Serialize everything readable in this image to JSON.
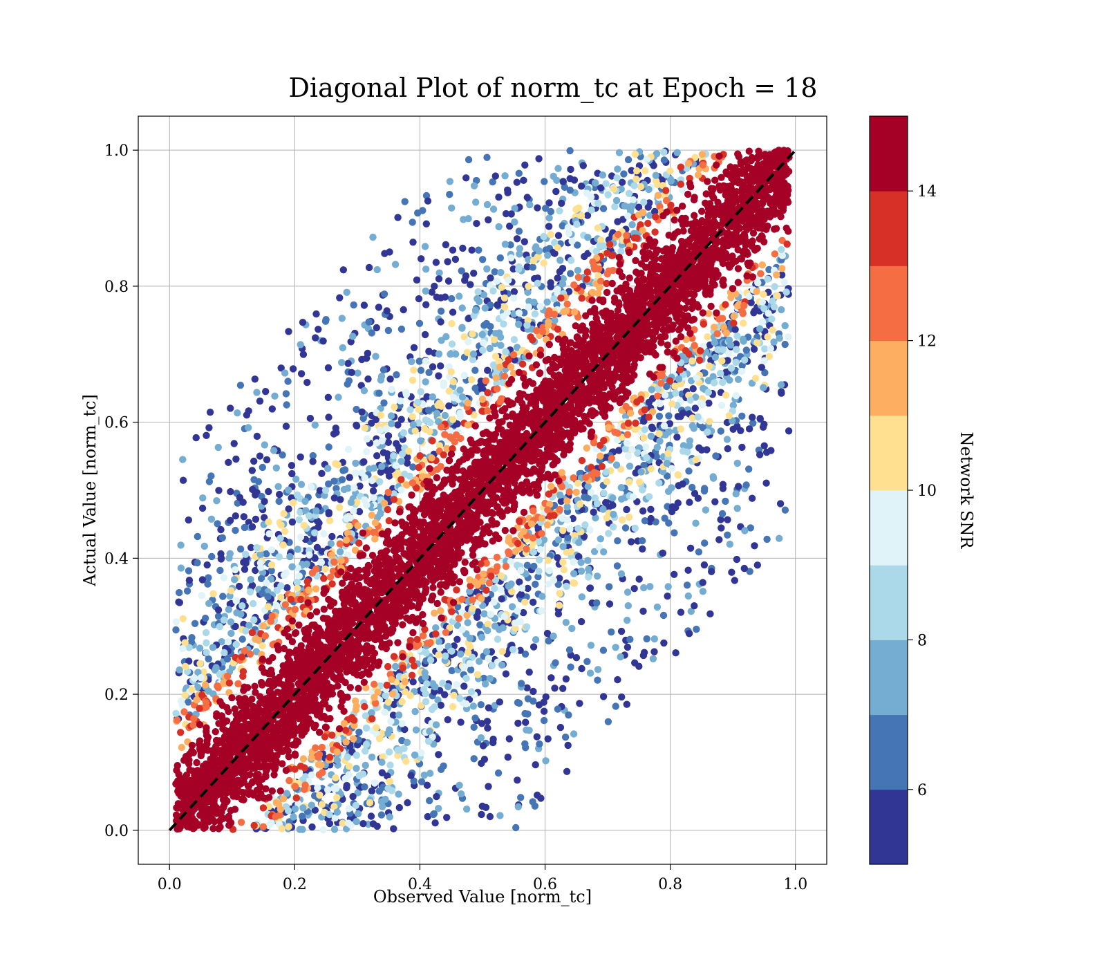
{
  "chart_data": {
    "type": "scatter",
    "title": "Diagonal Plot of norm_tc at Epoch = 18",
    "xlabel": "Observed Value [norm_tc]",
    "ylabel": "Actual Value [norm_tc]",
    "xlim": [
      -0.05,
      1.05
    ],
    "ylim": [
      -0.05,
      1.05
    ],
    "xticks": [
      0.0,
      0.2,
      0.4,
      0.6,
      0.8,
      1.0
    ],
    "yticks": [
      0.0,
      0.2,
      0.4,
      0.6,
      0.8,
      1.0
    ],
    "xtick_labels": [
      "0.0",
      "0.2",
      "0.4",
      "0.6",
      "0.8",
      "1.0"
    ],
    "ytick_labels": [
      "0.0",
      "0.2",
      "0.4",
      "0.6",
      "0.8",
      "1.0"
    ],
    "grid": true,
    "reference_line": {
      "style": "dashed",
      "color": "#000000",
      "from": [
        0.0,
        0.0
      ],
      "to": [
        1.0,
        1.0
      ]
    },
    "colorbar": {
      "label": "Network SNR",
      "range": [
        5,
        15
      ],
      "ticks": [
        6,
        8,
        10,
        12,
        14
      ],
      "tick_labels": [
        "6",
        "8",
        "10",
        "12",
        "14"
      ],
      "colors": [
        "#313695",
        "#4575b4",
        "#74add1",
        "#abd9e9",
        "#e0f3f8",
        "#fee090",
        "#fdae61",
        "#f46d43",
        "#d73027",
        "#a50026"
      ]
    },
    "series": [
      {
        "values_description_note": null,
        "bands": [
          {
            "snr_min": 14,
            "snr_max": 15,
            "scatter_about_diagonal": 0.12
          },
          {
            "snr_min": 11,
            "snr_max": 14,
            "scatter_about_diagonal": 0.14
          },
          {
            "snr_min": 8,
            "snr_max": 11,
            "scatter_about_diagonal": 0.3
          },
          {
            "snr_min": 5,
            "snr_max": 8,
            "scatter_about_diagonal": 0.55
          }
        ]
      }
    ]
  }
}
